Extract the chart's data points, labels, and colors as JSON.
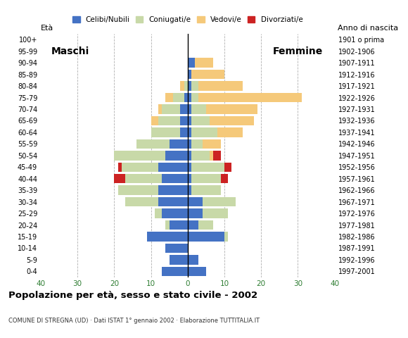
{
  "age_groups": [
    "0-4",
    "5-9",
    "10-14",
    "15-19",
    "20-24",
    "25-29",
    "30-34",
    "35-39",
    "40-44",
    "45-49",
    "50-54",
    "55-59",
    "60-64",
    "65-69",
    "70-74",
    "75-79",
    "80-84",
    "85-89",
    "90-94",
    "95-99",
    "100+"
  ],
  "birth_years": [
    "1997-2001",
    "1992-1996",
    "1987-1991",
    "1982-1986",
    "1977-1981",
    "1972-1976",
    "1967-1971",
    "1962-1966",
    "1957-1961",
    "1952-1956",
    "1947-1951",
    "1942-1946",
    "1937-1941",
    "1932-1936",
    "1927-1931",
    "1922-1926",
    "1917-1921",
    "1912-1916",
    "1907-1911",
    "1902-1906",
    "1901 o prima"
  ],
  "male": {
    "celibe": [
      7,
      5,
      6,
      11,
      5,
      7,
      8,
      8,
      7,
      8,
      6,
      5,
      2,
      2,
      2,
      1,
      0,
      0,
      0,
      0,
      0
    ],
    "coniugato": [
      0,
      0,
      0,
      0,
      1,
      2,
      9,
      11,
      10,
      10,
      14,
      9,
      8,
      6,
      5,
      3,
      1,
      0,
      0,
      0,
      0
    ],
    "vedovo": [
      0,
      0,
      0,
      0,
      0,
      0,
      0,
      0,
      0,
      0,
      0,
      0,
      0,
      2,
      1,
      2,
      1,
      0,
      0,
      0,
      0
    ],
    "divorziato": [
      0,
      0,
      0,
      0,
      0,
      0,
      0,
      0,
      3,
      1,
      0,
      0,
      0,
      0,
      0,
      0,
      0,
      0,
      0,
      0,
      0
    ]
  },
  "female": {
    "nubile": [
      5,
      3,
      0,
      10,
      3,
      4,
      4,
      1,
      1,
      1,
      1,
      1,
      1,
      1,
      1,
      1,
      1,
      1,
      2,
      0,
      0
    ],
    "coniugata": [
      0,
      0,
      0,
      1,
      4,
      7,
      9,
      8,
      8,
      9,
      5,
      3,
      7,
      5,
      4,
      2,
      2,
      0,
      0,
      0,
      0
    ],
    "vedova": [
      0,
      0,
      0,
      0,
      0,
      0,
      0,
      0,
      0,
      0,
      1,
      5,
      7,
      12,
      14,
      28,
      12,
      9,
      5,
      0,
      0
    ],
    "divorziata": [
      0,
      0,
      0,
      0,
      0,
      0,
      0,
      0,
      2,
      2,
      2,
      0,
      0,
      0,
      0,
      0,
      0,
      0,
      0,
      0,
      0
    ]
  },
  "colors": {
    "celibe_nubile": "#4472C4",
    "coniugato_coniugata": "#c8d9a8",
    "vedovo_vedova": "#f5c97a",
    "divorziato_divorziata": "#cc2222"
  },
  "xlim": 40,
  "title": "Popolazione per età, sesso e stato civile - 2002",
  "subtitle": "COMUNE DI STREGNA (UD) · Dati ISTAT 1° gennaio 2002 · Elaborazione TUTTITALIA.IT",
  "legend_labels": [
    "Celibi/Nubili",
    "Coniugati/e",
    "Vedovi/e",
    "Divorziati/e"
  ],
  "ylabel_left": "Età",
  "ylabel_right": "Anno di nascita",
  "label_maschi": "Maschi",
  "label_femmine": "Femmine",
  "bg_color": "#ffffff",
  "grid_color": "#b0b0b0"
}
